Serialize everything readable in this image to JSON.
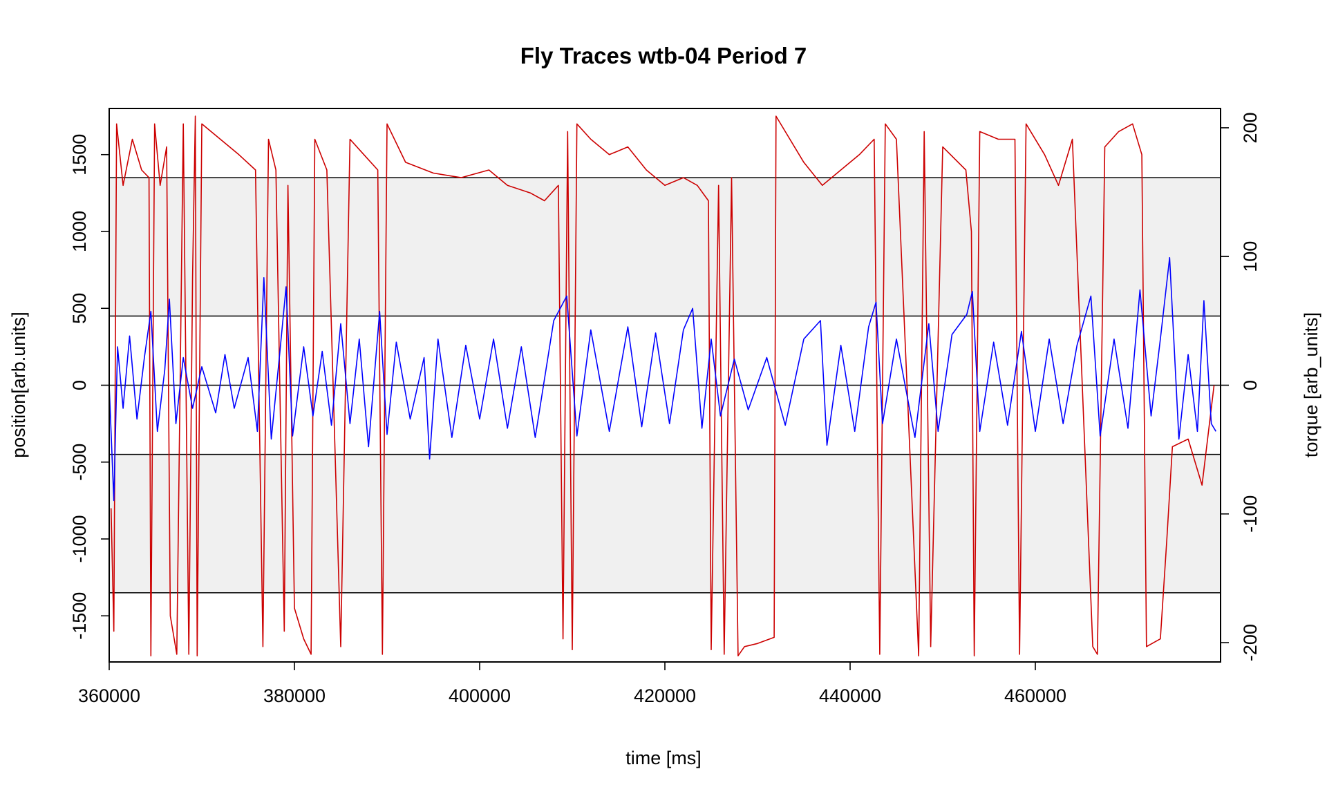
{
  "chart_data": {
    "type": "line",
    "title": "Fly Traces wtb-04 Period 7",
    "xlabel": "time [ms]",
    "ylabel_left": "position[arb.units]",
    "ylabel_right": "torque [arb_units]",
    "xlim": [
      360000,
      480000
    ],
    "ylim_left": [
      -1800,
      1800
    ],
    "ylim_right": [
      -215,
      215
    ],
    "x_ticks": [
      360000,
      380000,
      400000,
      420000,
      440000,
      460000
    ],
    "x_tick_labels": [
      "360000",
      "380000",
      "400000",
      "420000",
      "440000",
      "460000"
    ],
    "y_left_ticks": [
      -1500,
      -1000,
      -500,
      0,
      500,
      1000,
      1500
    ],
    "y_left_tick_labels": [
      "-1500",
      "-1000",
      "-500",
      "0",
      "500",
      "1000",
      "1500"
    ],
    "y_right_ticks": [
      -200,
      -100,
      0,
      100,
      200
    ],
    "y_right_tick_labels": [
      "-200",
      "-100",
      "0",
      "100",
      "200"
    ],
    "shaded_bands_position": [
      [
        450,
        1350
      ],
      [
        -1350,
        -450
      ]
    ],
    "horizontal_lines_position": [
      -1350,
      -450,
      0,
      450,
      1350
    ],
    "band_color": "#f0f0f0",
    "grid": false,
    "legend": "none",
    "series": [
      {
        "axis": "left",
        "color": "#cc0000",
        "points": [
          [
            360200,
            -800
          ],
          [
            360500,
            -1600
          ],
          [
            360800,
            1700
          ],
          [
            361500,
            1300
          ],
          [
            362500,
            1600
          ],
          [
            363500,
            1400
          ],
          [
            364300,
            1350
          ],
          [
            364500,
            -1760
          ],
          [
            364900,
            1700
          ],
          [
            365500,
            1300
          ],
          [
            366200,
            1550
          ],
          [
            366600,
            -1500
          ],
          [
            367300,
            -1750
          ],
          [
            368000,
            1700
          ],
          [
            368600,
            -1750
          ],
          [
            369000,
            700
          ],
          [
            369300,
            1750
          ],
          [
            369500,
            -1760
          ],
          [
            370000,
            1700
          ],
          [
            372000,
            1600
          ],
          [
            374000,
            1500
          ],
          [
            375800,
            1400
          ],
          [
            376600,
            -1700
          ],
          [
            377200,
            1600
          ],
          [
            378000,
            1400
          ],
          [
            378900,
            -1600
          ],
          [
            379300,
            1300
          ],
          [
            380000,
            -1450
          ],
          [
            381000,
            -1650
          ],
          [
            381800,
            -1750
          ],
          [
            382200,
            1600
          ],
          [
            383500,
            1400
          ],
          [
            385000,
            -1700
          ],
          [
            386000,
            1600
          ],
          [
            387500,
            1500
          ],
          [
            389000,
            1400
          ],
          [
            389500,
            -1750
          ],
          [
            390000,
            1700
          ],
          [
            392000,
            1450
          ],
          [
            395000,
            1380
          ],
          [
            398000,
            1350
          ],
          [
            401000,
            1400
          ],
          [
            403000,
            1300
          ],
          [
            405500,
            1250
          ],
          [
            407000,
            1200
          ],
          [
            408500,
            1300
          ],
          [
            409000,
            -1650
          ],
          [
            409500,
            1650
          ],
          [
            410000,
            -1720
          ],
          [
            410500,
            1700
          ],
          [
            412000,
            1600
          ],
          [
            414000,
            1500
          ],
          [
            416000,
            1550
          ],
          [
            418000,
            1400
          ],
          [
            420000,
            1300
          ],
          [
            422000,
            1350
          ],
          [
            423500,
            1300
          ],
          [
            424700,
            1200
          ],
          [
            425000,
            -1720
          ],
          [
            425800,
            1300
          ],
          [
            426400,
            -1750
          ],
          [
            427200,
            1350
          ],
          [
            427900,
            -1760
          ],
          [
            428600,
            -1700
          ],
          [
            430000,
            -1680
          ],
          [
            431800,
            -1640
          ],
          [
            432000,
            1750
          ],
          [
            433500,
            1600
          ],
          [
            435000,
            1450
          ],
          [
            437000,
            1300
          ],
          [
            439000,
            1400
          ],
          [
            441000,
            1500
          ],
          [
            442600,
            1600
          ],
          [
            443200,
            -1750
          ],
          [
            443800,
            1700
          ],
          [
            445000,
            1600
          ],
          [
            447400,
            -1760
          ],
          [
            448000,
            1650
          ],
          [
            448700,
            -1700
          ],
          [
            450000,
            1550
          ],
          [
            452500,
            1400
          ],
          [
            453100,
            1000
          ],
          [
            453400,
            -1760
          ],
          [
            454000,
            1650
          ],
          [
            456000,
            1600
          ],
          [
            457800,
            1600
          ],
          [
            458300,
            -1750
          ],
          [
            459000,
            1700
          ],
          [
            461000,
            1500
          ],
          [
            462500,
            1300
          ],
          [
            464000,
            1600
          ],
          [
            466200,
            -1700
          ],
          [
            466700,
            -1750
          ],
          [
            467500,
            1550
          ],
          [
            469000,
            1650
          ],
          [
            470500,
            1700
          ],
          [
            471500,
            1500
          ],
          [
            472000,
            -1700
          ],
          [
            473500,
            -1650
          ],
          [
            474200,
            -1000
          ],
          [
            474800,
            -400
          ],
          [
            476500,
            -350
          ],
          [
            478000,
            -650
          ],
          [
            479300,
            0
          ]
        ]
      },
      {
        "axis": "left",
        "color": "#0000ff",
        "points": [
          [
            360000,
            0
          ],
          [
            360500,
            -750
          ],
          [
            360900,
            250
          ],
          [
            361500,
            -150
          ],
          [
            362200,
            320
          ],
          [
            363000,
            -220
          ],
          [
            363800,
            180
          ],
          [
            364500,
            480
          ],
          [
            365200,
            -300
          ],
          [
            366000,
            100
          ],
          [
            366500,
            560
          ],
          [
            367200,
            -250
          ],
          [
            368000,
            180
          ],
          [
            369000,
            -150
          ],
          [
            370000,
            120
          ],
          [
            371500,
            -180
          ],
          [
            372500,
            200
          ],
          [
            373500,
            -150
          ],
          [
            375000,
            180
          ],
          [
            376000,
            -300
          ],
          [
            376700,
            700
          ],
          [
            377500,
            -350
          ],
          [
            378400,
            200
          ],
          [
            379100,
            640
          ],
          [
            379800,
            -330
          ],
          [
            381000,
            250
          ],
          [
            382000,
            -200
          ],
          [
            383000,
            220
          ],
          [
            384000,
            -260
          ],
          [
            385000,
            400
          ],
          [
            386000,
            -250
          ],
          [
            387000,
            300
          ],
          [
            388000,
            -400
          ],
          [
            389200,
            480
          ],
          [
            390000,
            -320
          ],
          [
            391000,
            280
          ],
          [
            392500,
            -220
          ],
          [
            394000,
            180
          ],
          [
            394600,
            -480
          ],
          [
            395500,
            300
          ],
          [
            397000,
            -340
          ],
          [
            398500,
            260
          ],
          [
            400000,
            -220
          ],
          [
            401500,
            300
          ],
          [
            403000,
            -280
          ],
          [
            404500,
            250
          ],
          [
            406000,
            -340
          ],
          [
            408000,
            420
          ],
          [
            409400,
            580
          ],
          [
            410500,
            -330
          ],
          [
            412000,
            360
          ],
          [
            414000,
            -300
          ],
          [
            416000,
            380
          ],
          [
            417500,
            -270
          ],
          [
            419000,
            340
          ],
          [
            420500,
            -250
          ],
          [
            422000,
            360
          ],
          [
            423000,
            500
          ],
          [
            424000,
            -280
          ],
          [
            425000,
            300
          ],
          [
            426000,
            -200
          ],
          [
            427500,
            170
          ],
          [
            429000,
            -160
          ],
          [
            431000,
            180
          ],
          [
            433000,
            -260
          ],
          [
            435000,
            300
          ],
          [
            436800,
            420
          ],
          [
            437500,
            -390
          ],
          [
            439000,
            260
          ],
          [
            440500,
            -300
          ],
          [
            442000,
            380
          ],
          [
            442800,
            540
          ],
          [
            443500,
            -250
          ],
          [
            445000,
            300
          ],
          [
            447000,
            -340
          ],
          [
            448500,
            400
          ],
          [
            449500,
            -300
          ],
          [
            451000,
            330
          ],
          [
            452600,
            460
          ],
          [
            453200,
            610
          ],
          [
            454000,
            -300
          ],
          [
            455500,
            280
          ],
          [
            457000,
            -260
          ],
          [
            458500,
            350
          ],
          [
            460000,
            -300
          ],
          [
            461500,
            300
          ],
          [
            463000,
            -250
          ],
          [
            464500,
            260
          ],
          [
            466000,
            580
          ],
          [
            467000,
            -330
          ],
          [
            468500,
            300
          ],
          [
            470000,
            -280
          ],
          [
            471300,
            620
          ],
          [
            472500,
            -200
          ],
          [
            473500,
            300
          ],
          [
            474500,
            830
          ],
          [
            475500,
            -350
          ],
          [
            476500,
            200
          ],
          [
            477500,
            -300
          ],
          [
            478200,
            550
          ],
          [
            479000,
            -250
          ],
          [
            479500,
            -300
          ]
        ]
      }
    ]
  }
}
